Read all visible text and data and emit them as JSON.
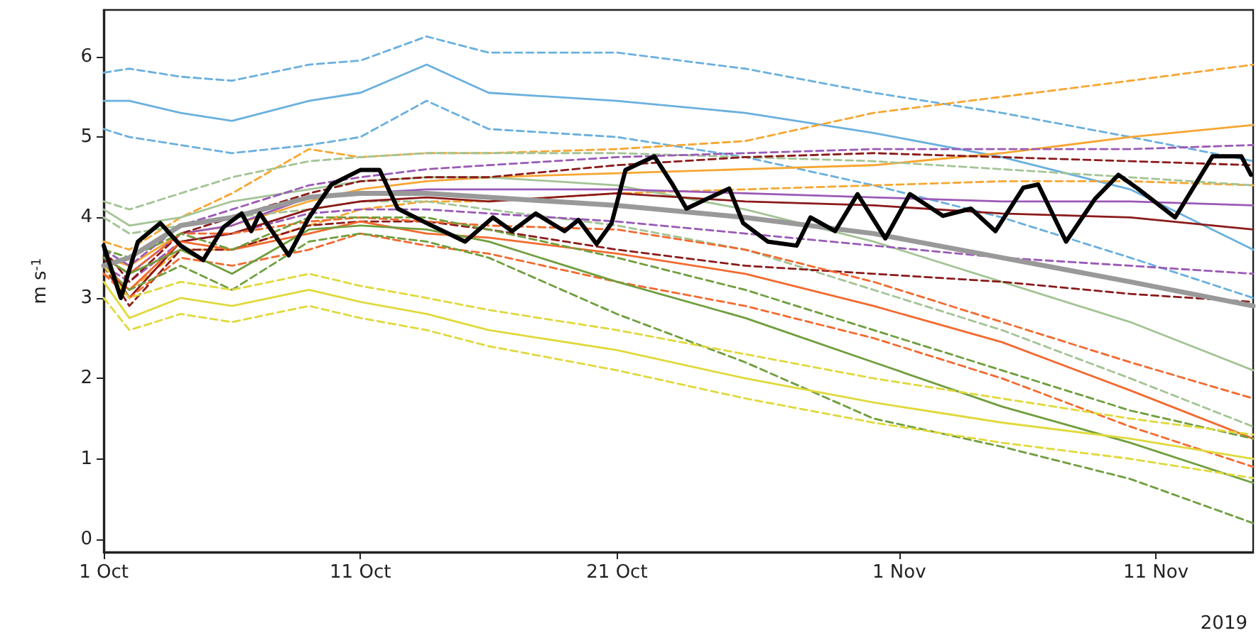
{
  "chart_data": {
    "type": "line",
    "ylabel": "m s$^{-1}$",
    "annotations": [
      "2019"
    ],
    "x": [
      "2019-10-01",
      "2019-10-02",
      "2019-10-04",
      "2019-10-06",
      "2019-10-09",
      "2019-10-11",
      "2019-10-13T14:00",
      "2019-10-16",
      "2019-10-21",
      "2019-10-26",
      "2019-10-31",
      "2019-11-05",
      "2019-11-10",
      "2019-11-14T19:00"
    ],
    "xlim": [
      "2019-10-01",
      "2019-11-14T19:00"
    ],
    "xticks": [
      {
        "value": "2019-10-01",
        "label": "1 Oct"
      },
      {
        "value": "2019-10-11",
        "label": "11 Oct"
      },
      {
        "value": "2019-10-21",
        "label": "21 Oct"
      },
      {
        "value": "2019-11-01",
        "label": "1 Nov"
      },
      {
        "value": "2019-11-11",
        "label": "11 Nov"
      }
    ],
    "ylim": [
      -0.16,
      6.58
    ],
    "yticks": [
      0,
      1,
      2,
      3,
      4,
      5,
      6
    ],
    "grid": false,
    "marker": "none",
    "series": [
      {
        "color": "#6ab0de",
        "line_style": "dashed",
        "values": [
          5.8,
          5.85,
          5.75,
          5.7,
          5.9,
          5.95,
          6.25,
          6.05,
          6.05,
          5.85,
          5.55,
          5.3,
          5.0,
          4.7
        ]
      },
      {
        "color": "#6ab0de",
        "line_style": "solid",
        "values": [
          5.45,
          5.45,
          5.3,
          5.2,
          5.45,
          5.55,
          5.9,
          5.55,
          5.45,
          5.3,
          5.05,
          4.75,
          4.35,
          3.6
        ]
      },
      {
        "color": "#6ab0de",
        "line_style": "dashed",
        "values": [
          5.1,
          5.0,
          4.9,
          4.8,
          4.9,
          5.0,
          5.45,
          5.1,
          5.0,
          4.75,
          4.4,
          4.0,
          3.5,
          3.0
        ]
      },
      {
        "color": "#f7a631",
        "line_style": "dashed",
        "values": [
          3.7,
          3.6,
          4.0,
          4.3,
          4.85,
          4.75,
          4.8,
          4.8,
          4.85,
          4.95,
          5.3,
          5.5,
          5.7,
          5.9
        ]
      },
      {
        "color": "#f7a631",
        "line_style": "solid",
        "values": [
          3.5,
          3.4,
          3.8,
          3.9,
          4.2,
          4.35,
          4.45,
          4.5,
          4.55,
          4.6,
          4.65,
          4.8,
          5.0,
          5.15
        ]
      },
      {
        "color": "#f7a631",
        "line_style": "dashed",
        "values": [
          3.3,
          3.1,
          3.6,
          3.6,
          3.9,
          4.1,
          4.2,
          4.2,
          4.3,
          4.35,
          4.4,
          4.45,
          4.45,
          4.4
        ]
      },
      {
        "color": "#a3c495",
        "line_style": "dashed",
        "values": [
          4.2,
          4.1,
          4.3,
          4.5,
          4.7,
          4.75,
          4.8,
          4.8,
          4.8,
          4.75,
          4.7,
          4.6,
          4.5,
          4.4
        ]
      },
      {
        "color": "#a3c495",
        "line_style": "solid",
        "values": [
          4.1,
          3.9,
          4.0,
          4.2,
          4.35,
          4.45,
          4.5,
          4.5,
          4.4,
          4.1,
          3.7,
          3.2,
          2.7,
          2.1
        ]
      },
      {
        "color": "#a3c495",
        "line_style": "dashed",
        "values": [
          4.0,
          3.8,
          3.9,
          4.0,
          4.1,
          4.2,
          4.2,
          4.1,
          3.9,
          3.6,
          3.1,
          2.6,
          2.0,
          1.4
        ]
      },
      {
        "color": "#9b59b6",
        "line_style": "dashed",
        "values": [
          3.6,
          3.4,
          3.9,
          4.1,
          4.4,
          4.5,
          4.6,
          4.65,
          4.75,
          4.8,
          4.85,
          4.85,
          4.85,
          4.9
        ]
      },
      {
        "color": "#9b59b6",
        "line_style": "solid",
        "values": [
          3.5,
          3.3,
          3.8,
          3.9,
          4.25,
          4.3,
          4.35,
          4.35,
          4.35,
          4.3,
          4.25,
          4.2,
          4.2,
          4.15
        ]
      },
      {
        "color": "#9b59b6",
        "line_style": "dashed",
        "values": [
          3.4,
          3.2,
          3.7,
          3.8,
          4.05,
          4.1,
          4.1,
          4.05,
          3.95,
          3.8,
          3.65,
          3.5,
          3.4,
          3.3
        ]
      },
      {
        "color": "#8b1a1a",
        "line_style": "dashed",
        "values": [
          3.6,
          3.2,
          3.8,
          4.0,
          4.3,
          4.45,
          4.5,
          4.5,
          4.65,
          4.75,
          4.8,
          4.75,
          4.7,
          4.65
        ]
      },
      {
        "color": "#8b1a1a",
        "line_style": "solid",
        "values": [
          3.5,
          3.0,
          3.7,
          3.8,
          4.1,
          4.2,
          4.25,
          4.2,
          4.3,
          4.2,
          4.15,
          4.05,
          4.0,
          3.85
        ]
      },
      {
        "color": "#8b1a1a",
        "line_style": "dashed",
        "values": [
          3.4,
          2.9,
          3.6,
          3.6,
          3.9,
          3.95,
          3.95,
          3.85,
          3.6,
          3.4,
          3.3,
          3.2,
          3.05,
          2.95
        ]
      },
      {
        "color": "#f26a2f",
        "line_style": "dashed",
        "values": [
          3.5,
          3.3,
          3.8,
          3.8,
          3.95,
          4.0,
          3.95,
          3.9,
          3.85,
          3.6,
          3.2,
          2.7,
          2.2,
          1.75
        ]
      },
      {
        "color": "#f26a2f",
        "line_style": "solid",
        "values": [
          3.4,
          3.1,
          3.7,
          3.6,
          3.8,
          3.95,
          3.8,
          3.75,
          3.55,
          3.3,
          2.9,
          2.45,
          1.85,
          1.25
        ]
      },
      {
        "color": "#f26a2f",
        "line_style": "dashed",
        "values": [
          3.3,
          3.0,
          3.5,
          3.4,
          3.6,
          3.8,
          3.65,
          3.55,
          3.2,
          2.9,
          2.5,
          2.0,
          1.4,
          0.9
        ]
      },
      {
        "color": "#6f9e3d",
        "line_style": "dashed",
        "values": [
          3.6,
          3.5,
          3.8,
          3.6,
          4.0,
          4.0,
          4.0,
          3.85,
          3.5,
          3.1,
          2.6,
          2.1,
          1.6,
          1.25
        ]
      },
      {
        "color": "#6f9e3d",
        "line_style": "solid",
        "values": [
          3.5,
          3.3,
          3.6,
          3.3,
          3.85,
          3.9,
          3.85,
          3.7,
          3.2,
          2.75,
          2.2,
          1.65,
          1.2,
          0.7
        ]
      },
      {
        "color": "#6f9e3d",
        "line_style": "dashed",
        "values": [
          3.4,
          3.1,
          3.4,
          3.1,
          3.7,
          3.8,
          3.7,
          3.5,
          2.8,
          2.2,
          1.5,
          1.15,
          0.75,
          0.2
        ]
      },
      {
        "color": "#e0d93c",
        "line_style": "dashed",
        "values": [
          3.4,
          3.0,
          3.2,
          3.1,
          3.3,
          3.15,
          3.0,
          2.85,
          2.6,
          2.3,
          2.0,
          1.75,
          1.5,
          1.3
        ]
      },
      {
        "color": "#e0d93c",
        "line_style": "solid",
        "values": [
          3.2,
          2.75,
          3.0,
          2.9,
          3.1,
          2.95,
          2.8,
          2.6,
          2.35,
          2.0,
          1.7,
          1.45,
          1.25,
          1.0
        ]
      },
      {
        "color": "#e0d93c",
        "line_style": "dashed",
        "values": [
          3.0,
          2.6,
          2.8,
          2.7,
          2.9,
          2.75,
          2.6,
          2.4,
          2.1,
          1.75,
          1.45,
          1.2,
          1.0,
          0.76
        ]
      },
      {
        "color": "#999999",
        "line_style": "solid",
        "values": [
          3.4,
          3.5,
          3.9,
          4.0,
          4.25,
          4.3,
          4.3,
          4.25,
          4.15,
          4.0,
          3.8,
          3.5,
          3.2,
          2.9
        ]
      },
      {
        "color": "#000000",
        "line_style": "solid",
        "x": [
          "2019-10-01T00:00",
          "2019-10-01T16:00",
          "2019-10-02T08:00",
          "2019-10-03T05:00",
          "2019-10-04T00:00",
          "2019-10-04T21:00",
          "2019-10-05T16:00",
          "2019-10-06T09:00",
          "2019-10-06T18:00",
          "2019-10-07T02:00",
          "2019-10-08T05:00",
          "2019-10-09T00:00",
          "2019-10-09T21:00",
          "2019-10-11T00:00",
          "2019-10-11T18:00",
          "2019-10-12T11:00",
          "2019-10-13T14:00",
          "2019-10-15T02:00",
          "2019-10-16T04:00",
          "2019-10-16T22:00",
          "2019-10-17T20:00",
          "2019-10-18T23:00",
          "2019-10-19T12:00",
          "2019-10-20T05:00",
          "2019-10-20T19:00",
          "2019-10-21T08:00",
          "2019-10-22T11:00",
          "2019-10-23T04:00",
          "2019-10-23T17:00",
          "2019-10-24T12:00",
          "2019-10-25T09:00",
          "2019-10-25T22:00",
          "2019-10-26T21:00",
          "2019-10-28T00:00",
          "2019-10-28T13:00",
          "2019-10-29T12:00",
          "2019-10-30T09:00",
          "2019-10-31T11:00",
          "2019-11-01T10:00",
          "2019-11-02T17:00",
          "2019-11-03T19:00",
          "2019-11-04T18:00",
          "2019-11-05T20:00",
          "2019-11-06T10:00",
          "2019-11-07T12:00",
          "2019-11-08T15:00",
          "2019-11-09T13:00",
          "2019-11-10T07:00",
          "2019-11-11T18:00",
          "2019-11-13T05:00",
          "2019-11-14T08:00",
          "2019-11-14T17:00"
        ],
        "values": [
          3.65,
          3.0,
          3.7,
          3.93,
          3.65,
          3.47,
          3.88,
          4.05,
          3.83,
          4.05,
          3.53,
          4.0,
          4.41,
          4.59,
          4.59,
          4.11,
          3.93,
          3.7,
          4.0,
          3.83,
          4.05,
          3.83,
          3.97,
          3.67,
          3.93,
          4.59,
          4.76,
          4.41,
          4.11,
          4.23,
          4.36,
          3.93,
          3.7,
          3.65,
          4.0,
          3.83,
          4.29,
          3.74,
          4.29,
          4.02,
          4.11,
          3.83,
          4.37,
          4.41,
          3.7,
          4.23,
          4.53,
          4.36,
          4.0,
          4.76,
          4.76,
          4.53
        ]
      }
    ]
  }
}
